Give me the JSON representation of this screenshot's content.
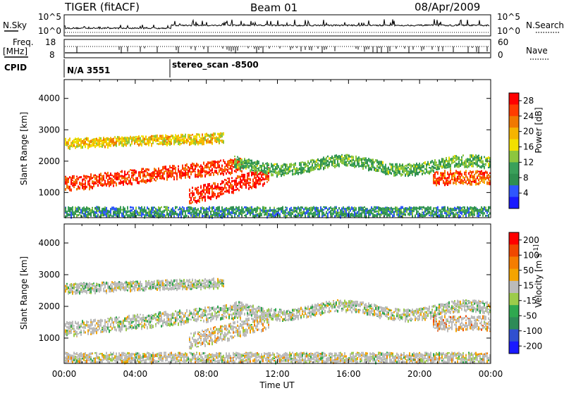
{
  "header": {
    "title": "TIGER (fitACF)",
    "beam": "Beam 01",
    "date": "08/Apr/2009"
  },
  "side_labels": {
    "n_sky": "N.Sky",
    "freq_line1": "Freq.",
    "freq_line2": "[MHz]",
    "cpid": "CPID",
    "n_search": "N.Search",
    "nave": "Nave"
  },
  "noise_panel": {
    "left_ticks": [
      "10^5",
      "10^0"
    ],
    "right_ticks": [
      "10^5",
      "10^0"
    ]
  },
  "freq_panel": {
    "left_ticks": [
      "18",
      "8"
    ],
    "right_ticks": [
      "60",
      "0"
    ]
  },
  "cpid_panel": {
    "labels": [
      "N/A 3551",
      "stereo_scan -8500"
    ]
  },
  "colors": {
    "power_scale": [
      "#1a1aff",
      "#2f56ff",
      "#2f8f4f",
      "#3aa05a",
      "#8cc63e",
      "#f2e000",
      "#f5b400",
      "#f07800",
      "#ff3c00",
      "#ff0000"
    ],
    "velocity_scale": [
      "#1a1aff",
      "#3050d0",
      "#2e8b57",
      "#2fa84f",
      "#9ccc4a",
      "#bbbbbb",
      "#f4a400",
      "#f57d00",
      "#f04800",
      "#ff0000"
    ]
  },
  "chart_data": [
    {
      "type": "heatmap",
      "title": "",
      "xlabel": "Time UT",
      "ylabel": "Slant Range [km]",
      "xlim": [
        "00:00",
        "24:00"
      ],
      "ylim": [
        200,
        4600
      ],
      "x_ticks": [
        "00:00",
        "04:00",
        "08:00",
        "12:00",
        "16:00",
        "20:00",
        "00:00"
      ],
      "y_ticks": [
        1000,
        2000,
        3000,
        4000
      ],
      "colorbar_label": "Power [dB]",
      "colorbar_ticks": [
        4,
        8,
        12,
        16,
        20,
        24,
        28
      ],
      "colorbar_range": [
        0,
        30
      ]
    },
    {
      "type": "heatmap",
      "title": "",
      "xlabel": "Time UT",
      "ylabel": "Slant Range [km]",
      "xlim": [
        "00:00",
        "24:00"
      ],
      "ylim": [
        200,
        4600
      ],
      "x_ticks": [
        "00:00",
        "04:00",
        "08:00",
        "12:00",
        "16:00",
        "20:00",
        "00:00"
      ],
      "y_ticks": [
        1000,
        2000,
        3000,
        4000
      ],
      "colorbar_label": "Velocity [m s^-1]",
      "colorbar_ticks": [
        200,
        100,
        50,
        15,
        -15,
        -50,
        -100,
        -200
      ]
    }
  ]
}
